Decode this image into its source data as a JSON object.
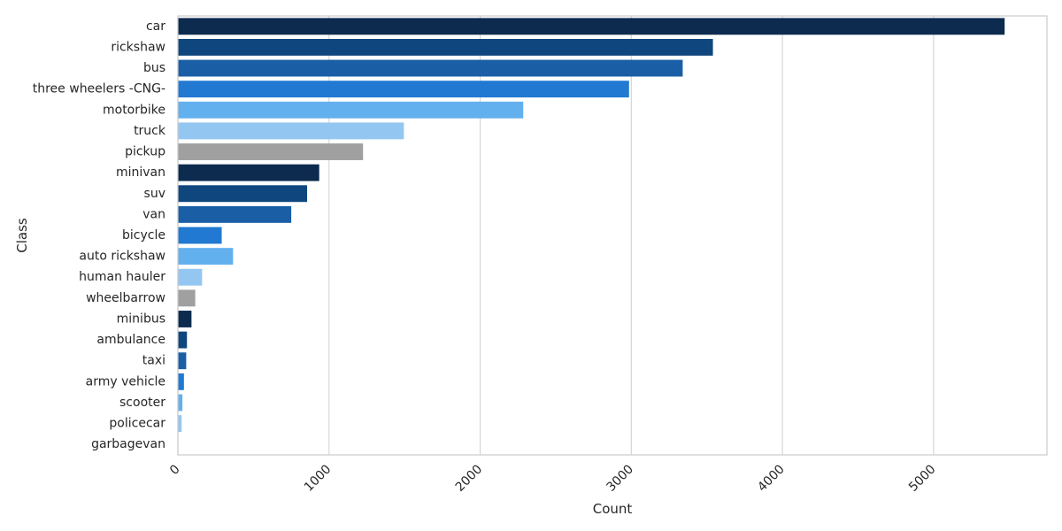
{
  "chart_data": {
    "type": "bar",
    "orientation": "horizontal",
    "xlabel": "Count",
    "ylabel": "Class",
    "xlim": [
      0,
      5750
    ],
    "xticks": [
      0,
      1000,
      2000,
      3000,
      4000,
      5000
    ],
    "grid": "vertical",
    "categories": [
      "car",
      "rickshaw",
      "bus",
      "three wheelers -CNG-",
      "motorbike",
      "truck",
      "pickup",
      "minivan",
      "suv",
      "van",
      "bicycle",
      "auto rickshaw",
      "human hauler",
      "wheelbarrow",
      "minibus",
      "ambulance",
      "taxi",
      "army vehicle",
      "scooter",
      "policecar",
      "garbagevan"
    ],
    "values": [
      5470,
      3540,
      3340,
      2985,
      2285,
      1495,
      1225,
      935,
      855,
      750,
      290,
      365,
      160,
      115,
      90,
      60,
      55,
      40,
      30,
      25,
      3
    ],
    "colors": [
      "#0d2b4e",
      "#0f467d",
      "#1a5ea5",
      "#2179d2",
      "#63b0ee",
      "#93c7f2",
      "#a0a0a0",
      "#0d2b4e",
      "#0f467d",
      "#1a5ea5",
      "#2179d2",
      "#63b0ee",
      "#93c7f2",
      "#a0a0a0",
      "#0d2b4e",
      "#0f467d",
      "#1a5ea5",
      "#2179d2",
      "#63b0ee",
      "#93c7f2",
      "#a0a0a0"
    ]
  }
}
